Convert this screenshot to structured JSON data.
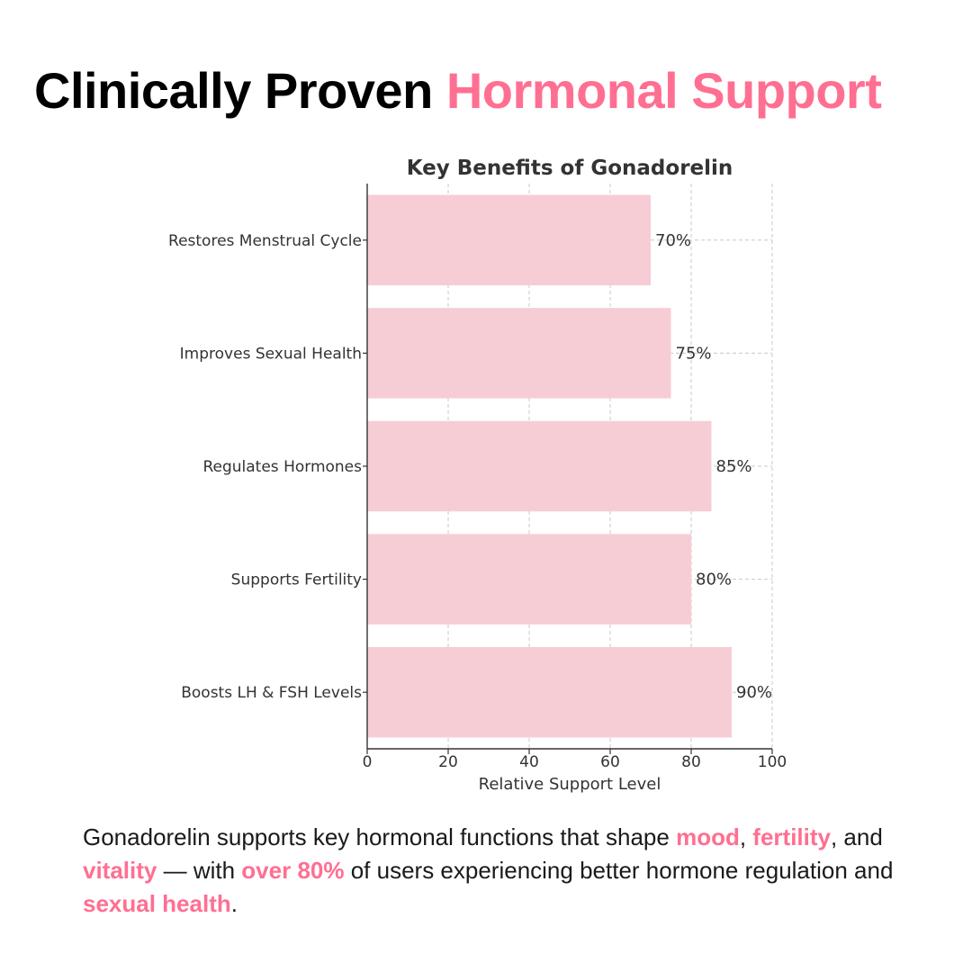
{
  "headline": {
    "lead": "Clinically Proven",
    "accent": "Hormonal Support"
  },
  "colors": {
    "accent": "#ff6f91",
    "bar_fill": "#f7cdd5",
    "text": "#1a1a1a"
  },
  "chart_data": {
    "type": "bar",
    "orientation": "horizontal",
    "title": "Key Benefits of Gonadorelin",
    "xlabel": "Relative Support Level",
    "ylabel": "",
    "categories": [
      "Restores Menstrual Cycle",
      "Improves Sexual Health",
      "Regulates Hormones",
      "Supports Fertility",
      "Boosts LH & FSH Levels"
    ],
    "values": [
      70,
      75,
      85,
      80,
      90
    ],
    "data_labels": [
      "70%",
      "75%",
      "85%",
      "80%",
      "90%"
    ],
    "xlim": [
      0,
      100
    ],
    "xticks": [
      0,
      20,
      40,
      60,
      80,
      100
    ],
    "grid": true,
    "legend": false,
    "bar_color": "#f7cdd5"
  },
  "caption": {
    "t1": "Gonadorelin supports key hormonal functions that shape ",
    "h1": "mood",
    "t2": ", ",
    "h2": "fertility",
    "t3": ", and ",
    "h3": "vitality",
    "t4": " — with ",
    "h4": "over 80%",
    "t5": " of users experiencing better hormone regulation and ",
    "h5": "sexual health",
    "t6": "."
  }
}
